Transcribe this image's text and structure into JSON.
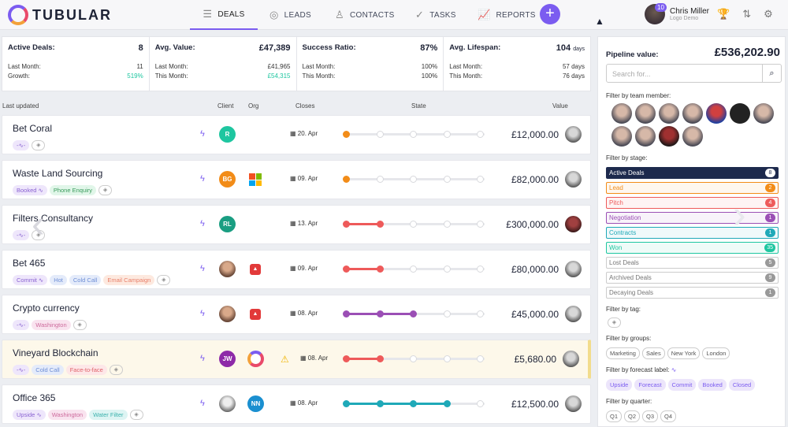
{
  "app": {
    "logo": "TUBULAR"
  },
  "nav": {
    "deals": "DEALS",
    "leads": "LEADS",
    "contacts": "CONTACTS",
    "tasks": "TASKS",
    "reports": "REPORTS"
  },
  "user": {
    "name": "Chris Miller",
    "sub": "Logo Demo",
    "badge": "10"
  },
  "stats": [
    {
      "label": "Active Deals:",
      "value": "8",
      "r1l": "Last Month:",
      "r1v": "11",
      "r2l": "Growth:",
      "r2v": "519%"
    },
    {
      "label": "Avg. Value:",
      "value": "£47,389",
      "r1l": "Last Month:",
      "r1v": "£41,965",
      "r2l": "This Month:",
      "r2v": "£54,315"
    },
    {
      "label": "Success Ratio:",
      "value": "87%",
      "r1l": "Last Month:",
      "r1v": "100%",
      "r2l": "This Month:",
      "r2v": "100%"
    },
    {
      "label": "Avg. Lifespan:",
      "value": "104",
      "unit": "days",
      "r1l": "Last Month:",
      "r1v": "57 days",
      "r2l": "This Month:",
      "r2v": "76 days"
    }
  ],
  "columns": {
    "updated": "Last updated",
    "client": "Client",
    "org": "Org",
    "closes": "Closes",
    "state": "State",
    "value": "Value"
  },
  "deals": [
    {
      "name": "Bet Coral",
      "client": "R",
      "closes": "20. Apr",
      "value": "£12,000.00",
      "stage_progress": 1,
      "stage_color": "#f28c18"
    },
    {
      "name": "Waste Land Sourcing",
      "tags": [
        "Booked",
        "Phone Enquiry"
      ],
      "client": "BG",
      "closes": "09. Apr",
      "value": "£82,000.00",
      "stage_progress": 1,
      "stage_color": "#f28c18"
    },
    {
      "name": "Filters Consultancy",
      "client": "RL",
      "closes": "13. Apr",
      "value": "£300,000.00",
      "stage_progress": 2,
      "stage_color": "#ee5a5a"
    },
    {
      "name": "Bet 465",
      "tags": [
        "Commit",
        "Hot",
        "Cold Call",
        "Email Campaign"
      ],
      "closes": "09. Apr",
      "value": "£80,000.00",
      "stage_progress": 2,
      "stage_color": "#ee5a5a"
    },
    {
      "name": "Crypto currency",
      "tags": [
        "Washington"
      ],
      "closes": "08. Apr",
      "value": "£45,000.00",
      "stage_progress": 3,
      "stage_color": "#9b4fb5"
    },
    {
      "name": "Vineyard Blockchain",
      "tags": [
        "Cold Call",
        "Face-to-face"
      ],
      "client": "JW",
      "closes": "08. Apr",
      "value": "£5,680.00",
      "stage_progress": 2,
      "stage_color": "#ee5a5a"
    },
    {
      "name": "Office 365",
      "tags": [
        "Upside",
        "Washington",
        "Water Filter"
      ],
      "org": "NN",
      "closes": "08. Apr",
      "value": "£12,500.00",
      "stage_progress": 4,
      "stage_color": "#1fa9b8"
    }
  ],
  "sidebar": {
    "pipeline_label": "Pipeline value:",
    "pipeline_value": "£536,202.90",
    "search_placeholder": "Search for...",
    "team_label": "Filter by team member:",
    "stage_label": "Filter by stage:",
    "stages": [
      {
        "name": "Active Deals",
        "count": "8",
        "color": "#1d2a4d"
      },
      {
        "name": "Lead",
        "count": "2",
        "color": "#f28c18"
      },
      {
        "name": "Pitch",
        "count": "4",
        "color": "#ee5a5a"
      },
      {
        "name": "Negotiation",
        "count": "1",
        "color": "#9b4fb5"
      },
      {
        "name": "Contracts",
        "count": "1",
        "color": "#1fa9b8"
      },
      {
        "name": "Won",
        "count": "35",
        "color": "#1ec6a0"
      },
      {
        "name": "Lost Deals",
        "count": "5",
        "color": "#999999"
      },
      {
        "name": "Archived Deals",
        "count": "9",
        "color": "#999999"
      },
      {
        "name": "Decaying Deals",
        "count": "1",
        "color": "#999999"
      }
    ],
    "tag_label": "Filter by tag:",
    "groups_label": "Filter by groups:",
    "groups": [
      "Marketing",
      "Sales",
      "New York",
      "London"
    ],
    "forecast_label": "Filter by forecast label:",
    "forecast": [
      "Upside",
      "Forecast",
      "Commit",
      "Booked",
      "Closed"
    ],
    "quarter_label": "Filter by quarter:",
    "quarters": [
      "Q1",
      "Q2",
      "Q3",
      "Q4"
    ]
  }
}
